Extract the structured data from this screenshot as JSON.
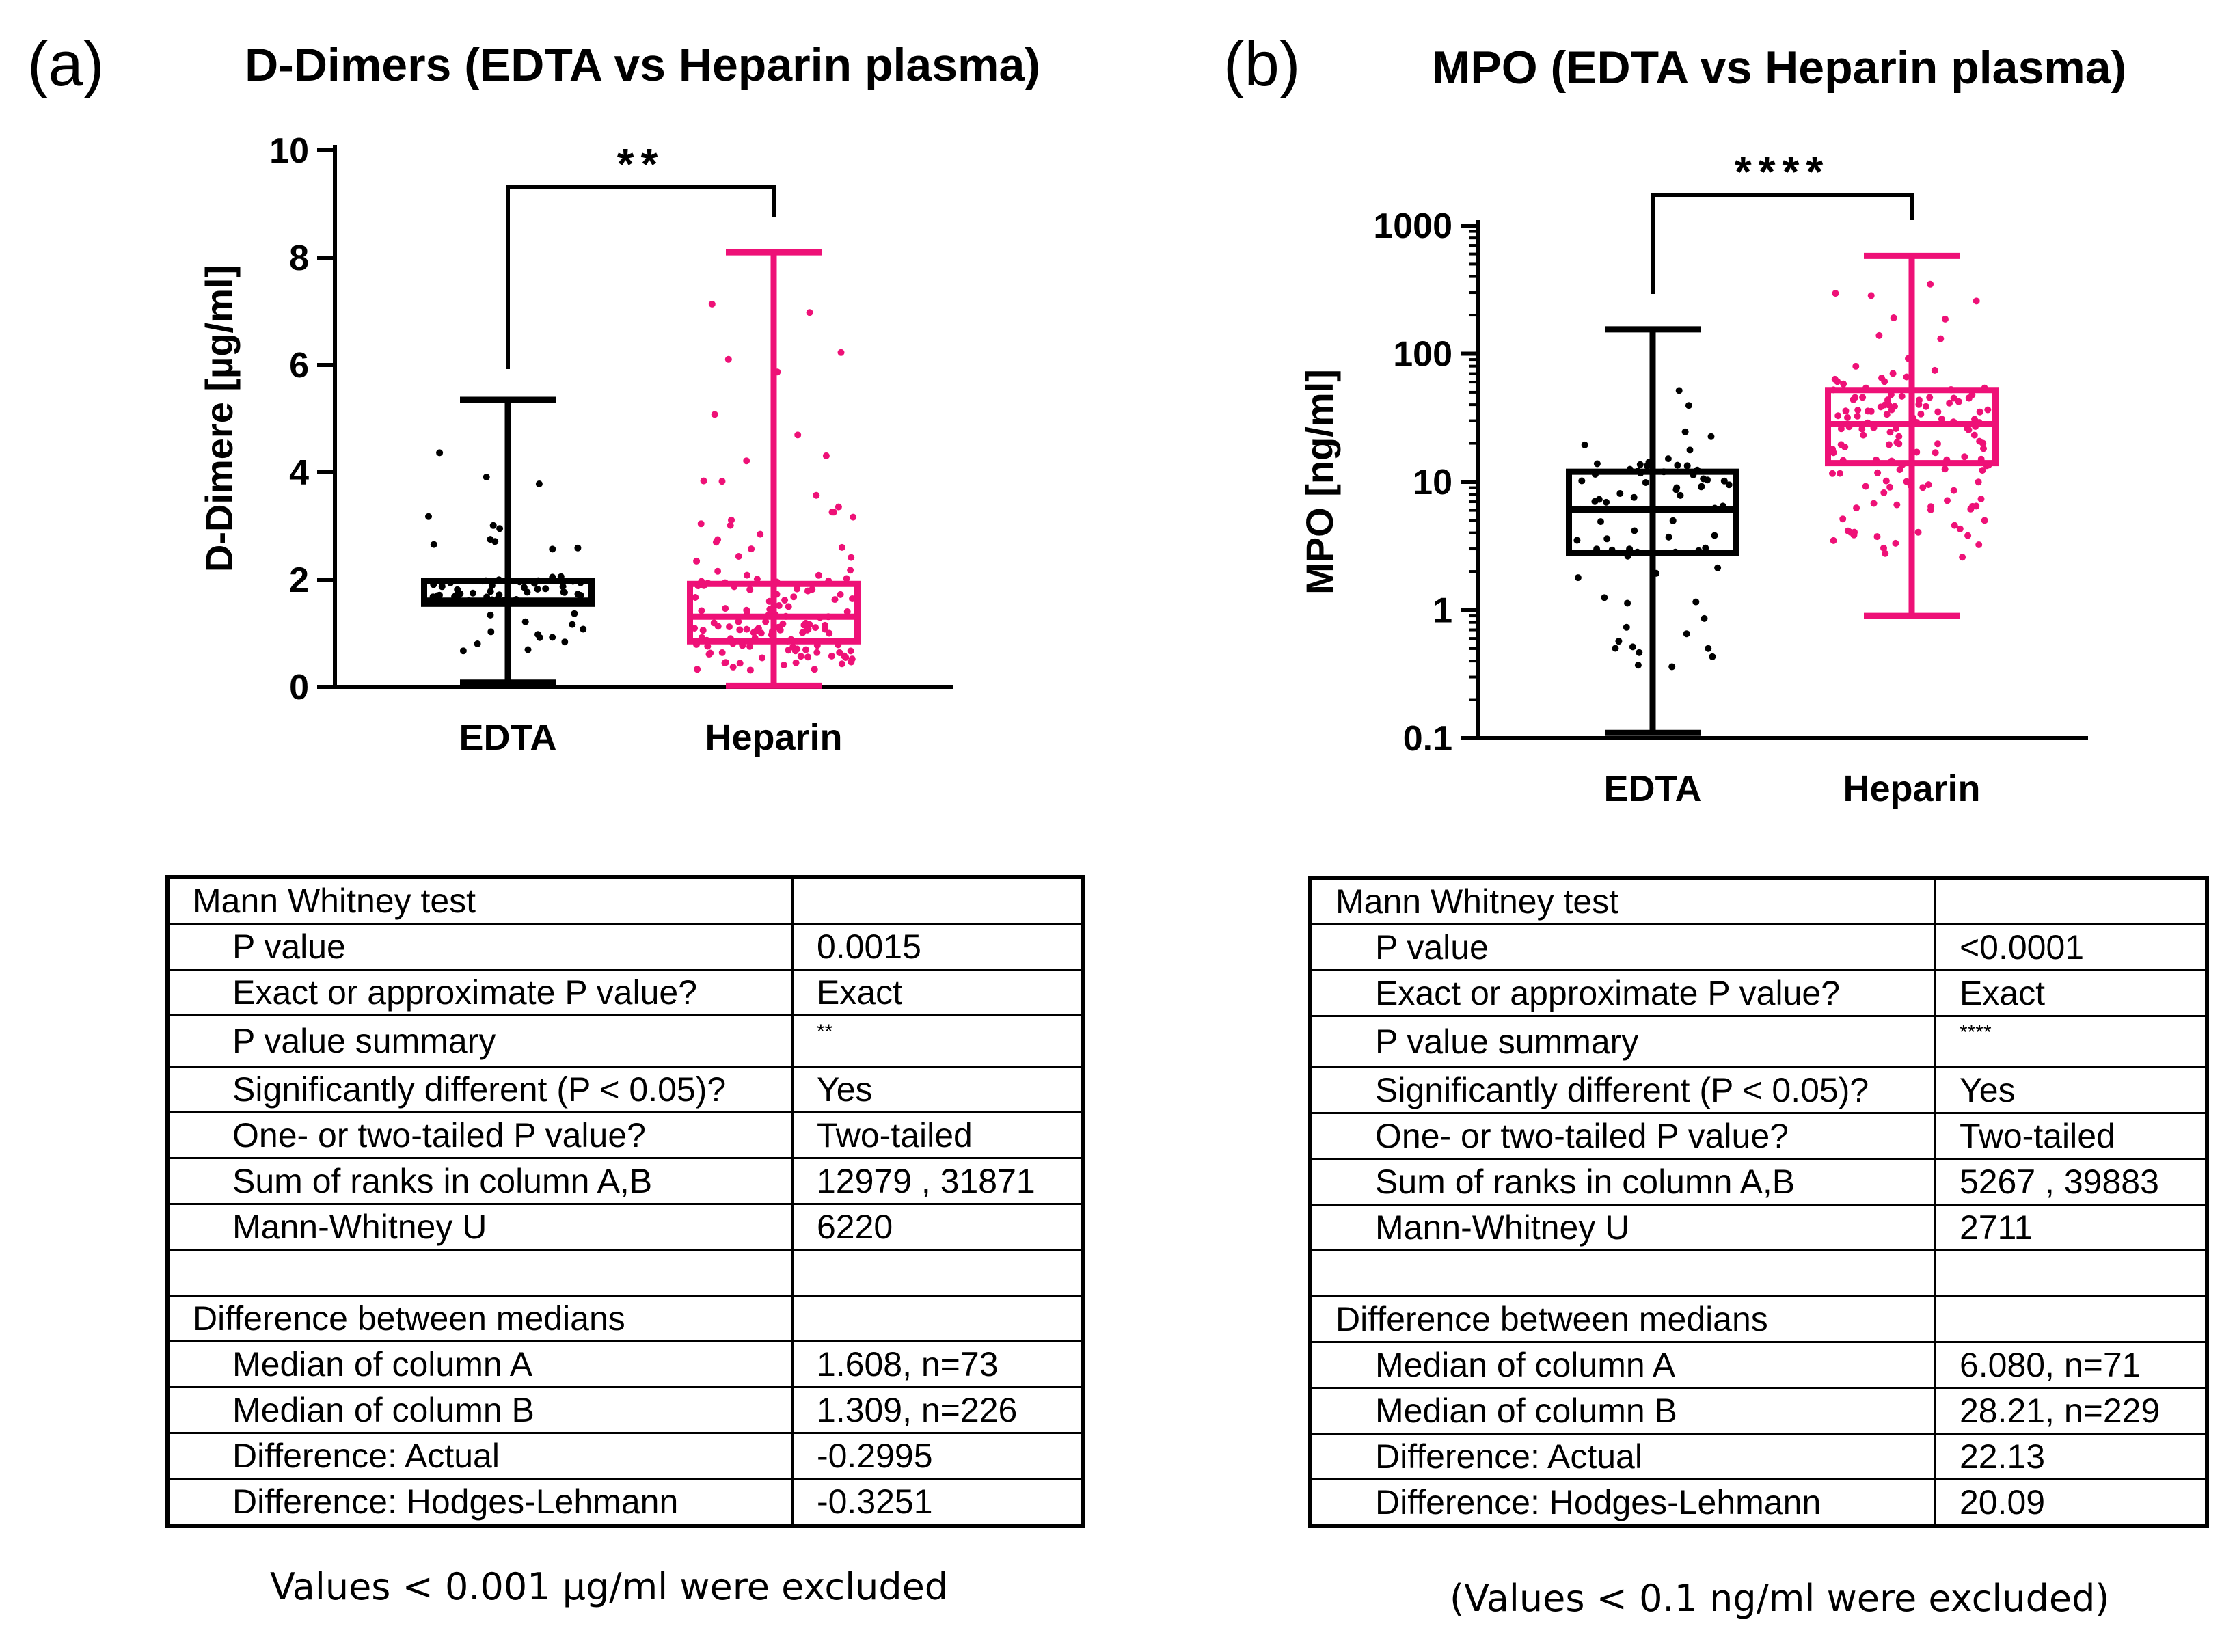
{
  "panel_a": {
    "letter": "(a)",
    "chart_data": {
      "type": "box",
      "title": "D-Dimers (EDTA vs Heparin plasma)",
      "ylabel": "D-Dimere [µg/ml]",
      "yscale": "linear",
      "ylim": [
        0,
        10
      ],
      "yticks": [
        0,
        2,
        4,
        6,
        8,
        10
      ],
      "categories": [
        "EDTA",
        "Heparin"
      ],
      "series": [
        {
          "name": "EDTA",
          "color": "#000000",
          "min": 0.08,
          "q1": 1.55,
          "median": 1.608,
          "q3": 1.98,
          "max": 5.35,
          "n": 73
        },
        {
          "name": "Heparin",
          "color": "#ee1177",
          "min": 0.02,
          "q1": 0.85,
          "median": 1.309,
          "q3": 1.92,
          "max": 8.1,
          "n": 226
        }
      ],
      "significance": "**"
    },
    "table": {
      "rows": [
        {
          "label": "Mann Whitney test",
          "value": "",
          "indent": false
        },
        {
          "label": "P value",
          "value": "0.0015",
          "indent": true
        },
        {
          "label": "Exact or approximate P value?",
          "value": "Exact",
          "indent": true
        },
        {
          "label": "P value summary",
          "value": "**",
          "indent": true,
          "small": true
        },
        {
          "label": "Significantly different (P < 0.05)?",
          "value": "Yes",
          "indent": true
        },
        {
          "label": "One- or two-tailed P value?",
          "value": "Two-tailed",
          "indent": true
        },
        {
          "label": "Sum of  ranks in column A,B",
          "value": "12979 , 31871",
          "indent": true
        },
        {
          "label": "Mann-Whitney U",
          "value": "6220",
          "indent": true
        },
        {
          "label": "",
          "value": "",
          "indent": false
        },
        {
          "label": "Difference between medians",
          "value": "",
          "indent": false
        },
        {
          "label": "Median of column A",
          "value": "1.608, n=73",
          "indent": true
        },
        {
          "label": "Median of column B",
          "value": "1.309, n=226",
          "indent": true
        },
        {
          "label": "Difference: Actual",
          "value": "-0.2995",
          "indent": true
        },
        {
          "label": "Difference: Hodges-Lehmann",
          "value": "-0.3251",
          "indent": true
        }
      ]
    },
    "note": "Values < 0.001 µg/ml were excluded"
  },
  "panel_b": {
    "letter": "(b)",
    "chart_data": {
      "type": "box",
      "title": "MPO (EDTA vs Heparin plasma)",
      "ylabel": "MPO [ng/ml]",
      "yscale": "log",
      "ylim": [
        0.1,
        1000
      ],
      "yticks": [
        0.1,
        1,
        10,
        100,
        1000
      ],
      "ytick_labels": [
        "0.1",
        "1",
        "10",
        "100",
        "1000"
      ],
      "categories": [
        "EDTA",
        "Heparin"
      ],
      "series": [
        {
          "name": "EDTA",
          "color": "#000000",
          "min": 0.11,
          "q1": 2.8,
          "median": 6.08,
          "q3": 12,
          "max": 155,
          "n": 71
        },
        {
          "name": "Heparin",
          "color": "#ee1177",
          "min": 0.9,
          "q1": 14,
          "median": 28.21,
          "q3": 52,
          "max": 580,
          "n": 229
        }
      ],
      "significance": "****"
    },
    "table": {
      "rows": [
        {
          "label": "Mann Whitney test",
          "value": "",
          "indent": false
        },
        {
          "label": "P value",
          "value": "<0.0001",
          "indent": true
        },
        {
          "label": "Exact or approximate P value?",
          "value": "Exact",
          "indent": true
        },
        {
          "label": "P value summary",
          "value": "****",
          "indent": true,
          "small": true
        },
        {
          "label": "Significantly different (P < 0.05)?",
          "value": "Yes",
          "indent": true
        },
        {
          "label": "One- or two-tailed P value?",
          "value": "Two-tailed",
          "indent": true
        },
        {
          "label": "Sum of  ranks in column A,B",
          "value": "5267 , 39883",
          "indent": true
        },
        {
          "label": "Mann-Whitney U",
          "value": "2711",
          "indent": true
        },
        {
          "label": "",
          "value": "",
          "indent": false
        },
        {
          "label": "Difference between medians",
          "value": "",
          "indent": false
        },
        {
          "label": "Median of column A",
          "value": "6.080, n=71",
          "indent": true
        },
        {
          "label": "Median of column B",
          "value": "28.21, n=229",
          "indent": true
        },
        {
          "label": "Difference: Actual",
          "value": "22.13",
          "indent": true
        },
        {
          "label": "Difference: Hodges-Lehmann",
          "value": "20.09",
          "indent": true
        }
      ]
    },
    "note": "(Values < 0.1 ng/ml were excluded)"
  }
}
